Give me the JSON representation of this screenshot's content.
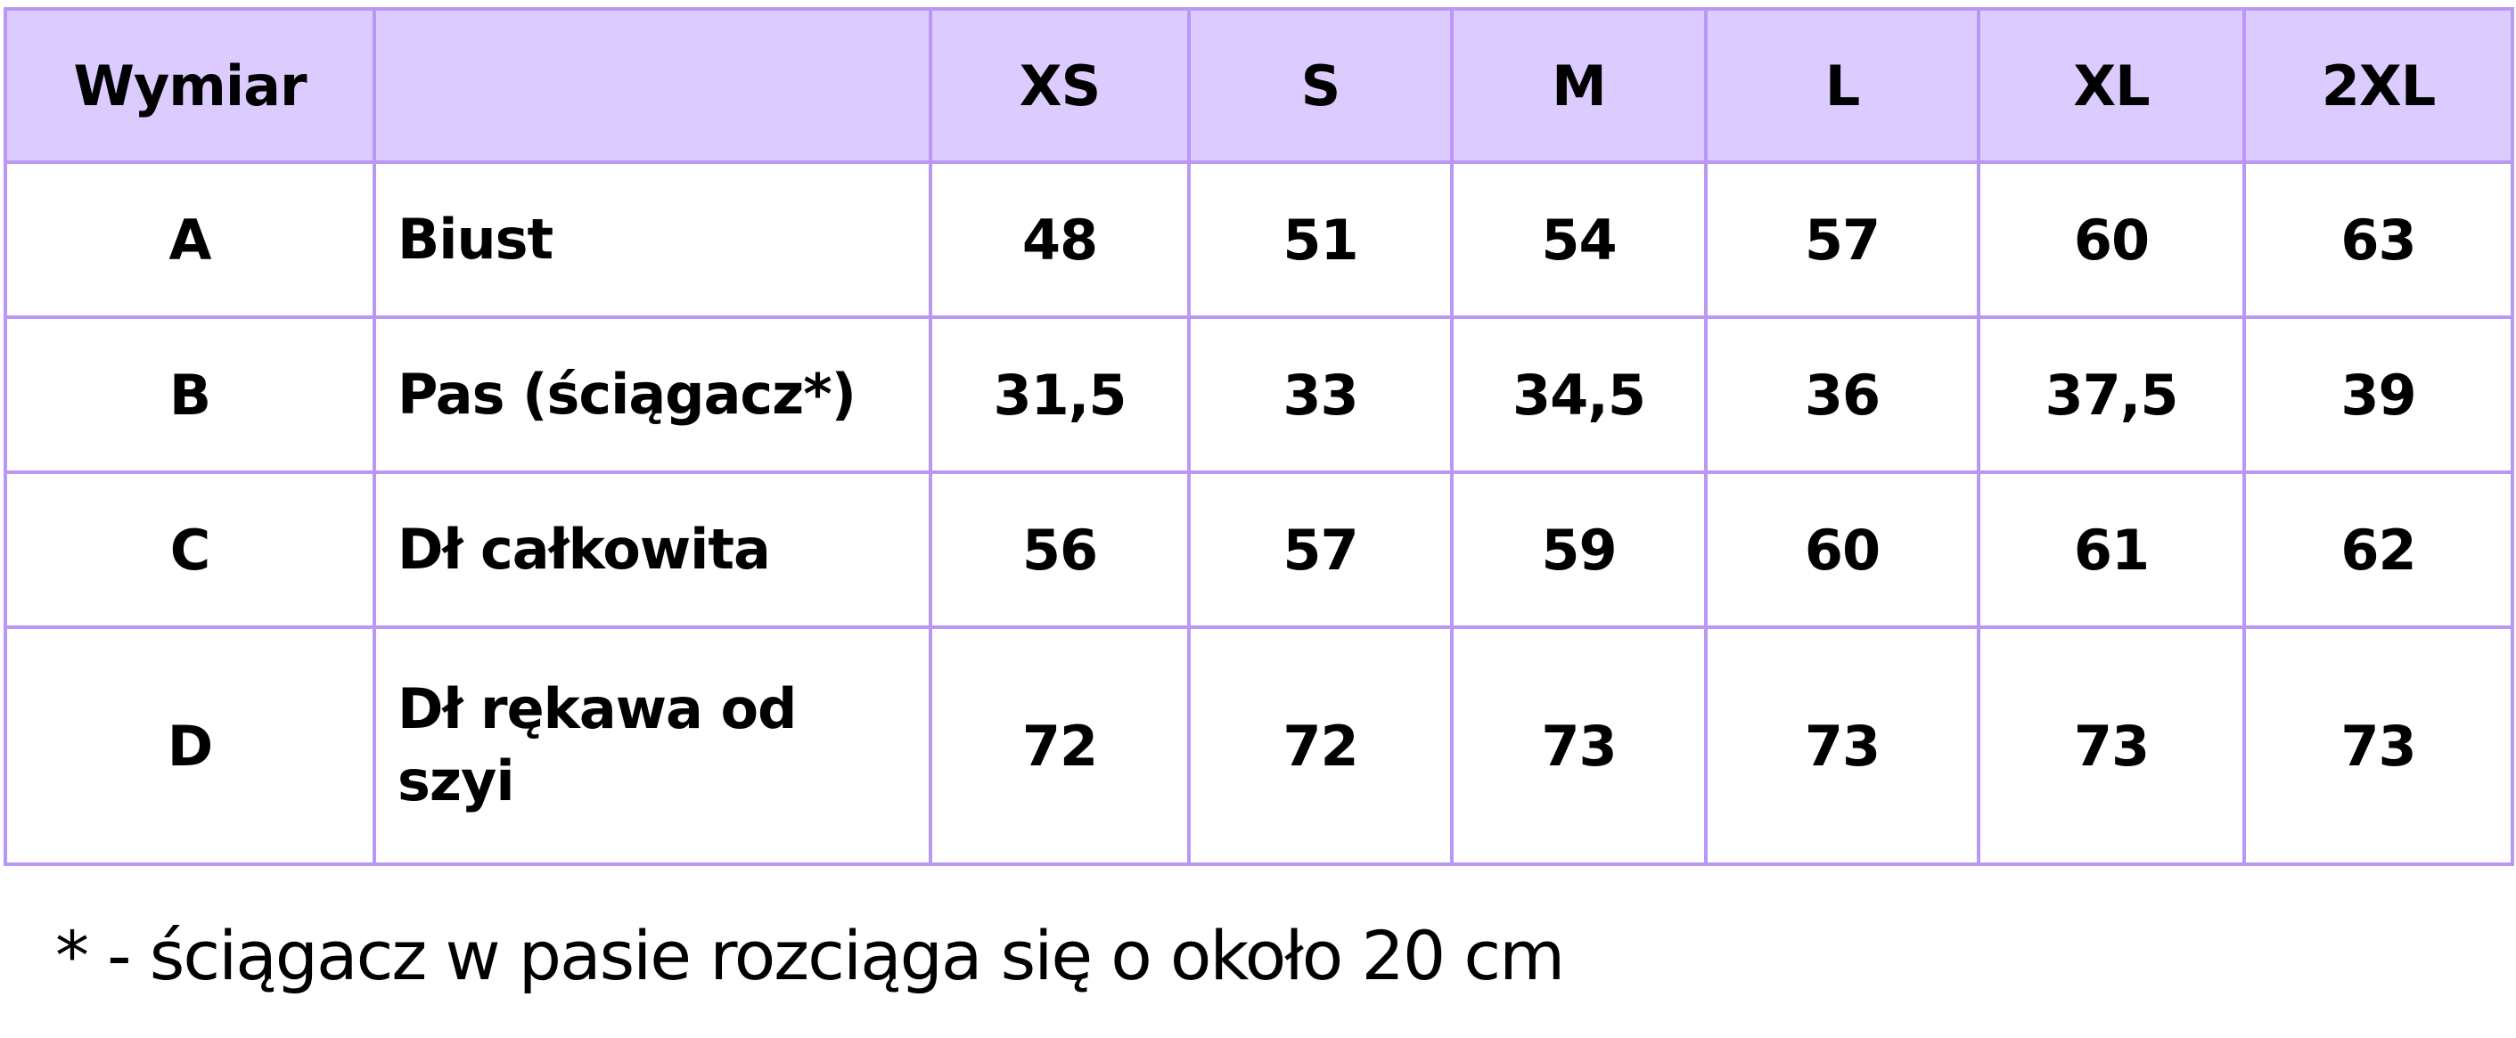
{
  "table": {
    "headers": [
      "Wymiar",
      "",
      "XS",
      "S",
      "M",
      "L",
      "XL",
      "2XL"
    ],
    "rows": [
      {
        "code": "A",
        "name": "Biust",
        "values": [
          "48",
          "51",
          "54",
          "57",
          "60",
          "63"
        ]
      },
      {
        "code": "B",
        "name": "Pas (ściągacz*)",
        "values": [
          "31,5",
          "33",
          "34,5",
          "36",
          "37,5",
          "39"
        ]
      },
      {
        "code": "C",
        "name": "Dł całkowita",
        "values": [
          "56",
          "57",
          "59",
          "60",
          "61",
          "62"
        ]
      },
      {
        "code": "D",
        "name": "Dł rękawa od szyi",
        "values": [
          "72",
          "72",
          "73",
          "73",
          "73",
          "73"
        ]
      }
    ]
  },
  "footnote": "* - ściągacz w pasie rozciąga się o około 20 cm",
  "colors": {
    "header_bg": "#dccbff",
    "border": "#b998f5"
  }
}
